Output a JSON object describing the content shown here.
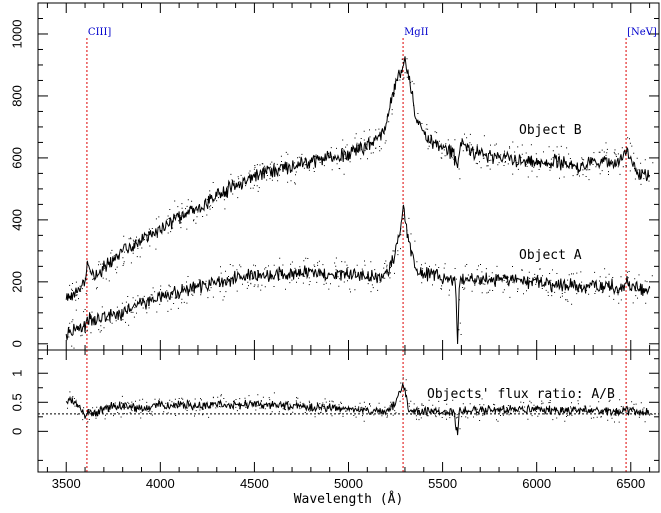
{
  "chart_data": [
    {
      "type": "line",
      "panel": "top",
      "x_range": [
        3350,
        6650
      ],
      "ylim": [
        -20,
        1100
      ],
      "y_ticks": [
        0,
        200,
        400,
        600,
        800,
        1000
      ],
      "y_tick_labels": [
        "0",
        "200",
        "400",
        "600",
        "800",
        "1000"
      ],
      "grid": false,
      "vertical_markers": [
        {
          "label": "CIII]",
          "x": 3610,
          "color": "#dd0000"
        },
        {
          "label": "MgII",
          "x": 5290,
          "color": "#dd0000"
        },
        {
          "label": "[NeV]",
          "x": 6475,
          "color": "#dd0000"
        }
      ],
      "series": [
        {
          "name": "Object B",
          "color": "#000000",
          "x": [
            3500,
            3550,
            3600,
            3610,
            3650,
            3700,
            3800,
            3900,
            4000,
            4100,
            4200,
            4300,
            4400,
            4500,
            4600,
            4700,
            4800,
            4900,
            5000,
            5050,
            5100,
            5150,
            5200,
            5220,
            5240,
            5260,
            5280,
            5290,
            5300,
            5320,
            5340,
            5360,
            5400,
            5450,
            5500,
            5550,
            5580,
            5600,
            5700,
            5800,
            5900,
            6000,
            6100,
            6200,
            6300,
            6400,
            6450,
            6475,
            6500,
            6550,
            6600
          ],
          "values": [
            140,
            165,
            195,
            250,
            220,
            245,
            295,
            335,
            370,
            405,
            440,
            480,
            510,
            540,
            560,
            575,
            590,
            600,
            610,
            630,
            640,
            660,
            700,
            760,
            820,
            860,
            870,
            900,
            920,
            860,
            800,
            730,
            680,
            650,
            630,
            620,
            580,
            640,
            610,
            600,
            590,
            580,
            590,
            570,
            590,
            580,
            600,
            620,
            590,
            550,
            540
          ]
        },
        {
          "name": "Object A",
          "color": "#000000",
          "x": [
            3500,
            3550,
            3600,
            3610,
            3650,
            3700,
            3800,
            3900,
            4000,
            4100,
            4200,
            4300,
            4400,
            4500,
            4600,
            4700,
            4800,
            4900,
            5000,
            5050,
            5100,
            5150,
            5200,
            5240,
            5260,
            5280,
            5290,
            5300,
            5320,
            5340,
            5380,
            5420,
            5480,
            5540,
            5570,
            5580,
            5590,
            5620,
            5700,
            5800,
            5900,
            6000,
            6100,
            6200,
            6300,
            6400,
            6450,
            6475,
            6500,
            6550,
            6600
          ],
          "values": [
            30,
            45,
            60,
            80,
            70,
            80,
            100,
            130,
            150,
            170,
            185,
            200,
            210,
            220,
            225,
            225,
            230,
            220,
            225,
            215,
            220,
            215,
            225,
            270,
            330,
            390,
            440,
            410,
            330,
            280,
            230,
            225,
            215,
            210,
            200,
            0,
            200,
            210,
            210,
            205,
            200,
            200,
            190,
            190,
            185,
            185,
            180,
            200,
            180,
            175,
            170
          ]
        }
      ],
      "annotations": [
        "Object B",
        "Object A"
      ]
    },
    {
      "type": "line",
      "panel": "bottom",
      "x_range": [
        3350,
        6650
      ],
      "ylim": [
        -0.7,
        1.4
      ],
      "y_ticks": [
        0,
        0.5,
        1
      ],
      "y_tick_labels": [
        "0",
        "0.5",
        "1"
      ],
      "x_ticks": [
        3500,
        4000,
        4500,
        5000,
        5500,
        6000,
        6500
      ],
      "x_tick_labels": [
        "3500",
        "4000",
        "4500",
        "5000",
        "5500",
        "6000",
        "6500"
      ],
      "xlabel": "Wavelength (Å)",
      "reference_line": {
        "y": 0.3,
        "style": "dotted"
      },
      "series": [
        {
          "name": "Objects' flux ratio: A/B",
          "color": "#000000",
          "x": [
            3500,
            3550,
            3600,
            3610,
            3650,
            3700,
            3800,
            3900,
            4000,
            4100,
            4200,
            4300,
            4400,
            4500,
            4600,
            4700,
            4800,
            4900,
            5000,
            5100,
            5200,
            5250,
            5270,
            5290,
            5300,
            5320,
            5350,
            5400,
            5500,
            5560,
            5580,
            5590,
            5620,
            5700,
            5800,
            5900,
            6000,
            6100,
            6200,
            6300,
            6400,
            6475,
            6500,
            6550,
            6600
          ],
          "values": [
            0.55,
            0.5,
            0.3,
            0.35,
            0.3,
            0.4,
            0.45,
            0.4,
            0.45,
            0.45,
            0.45,
            0.45,
            0.45,
            0.45,
            0.45,
            0.42,
            0.42,
            0.4,
            0.38,
            0.36,
            0.34,
            0.45,
            0.65,
            0.85,
            0.7,
            0.4,
            0.33,
            0.35,
            0.35,
            0.33,
            -0.05,
            0.35,
            0.36,
            0.36,
            0.37,
            0.38,
            0.38,
            0.37,
            0.36,
            0.35,
            0.35,
            0.35,
            0.35,
            0.35,
            0.36
          ]
        }
      ],
      "annotations": [
        "Objects' flux ratio: A/B"
      ]
    }
  ]
}
